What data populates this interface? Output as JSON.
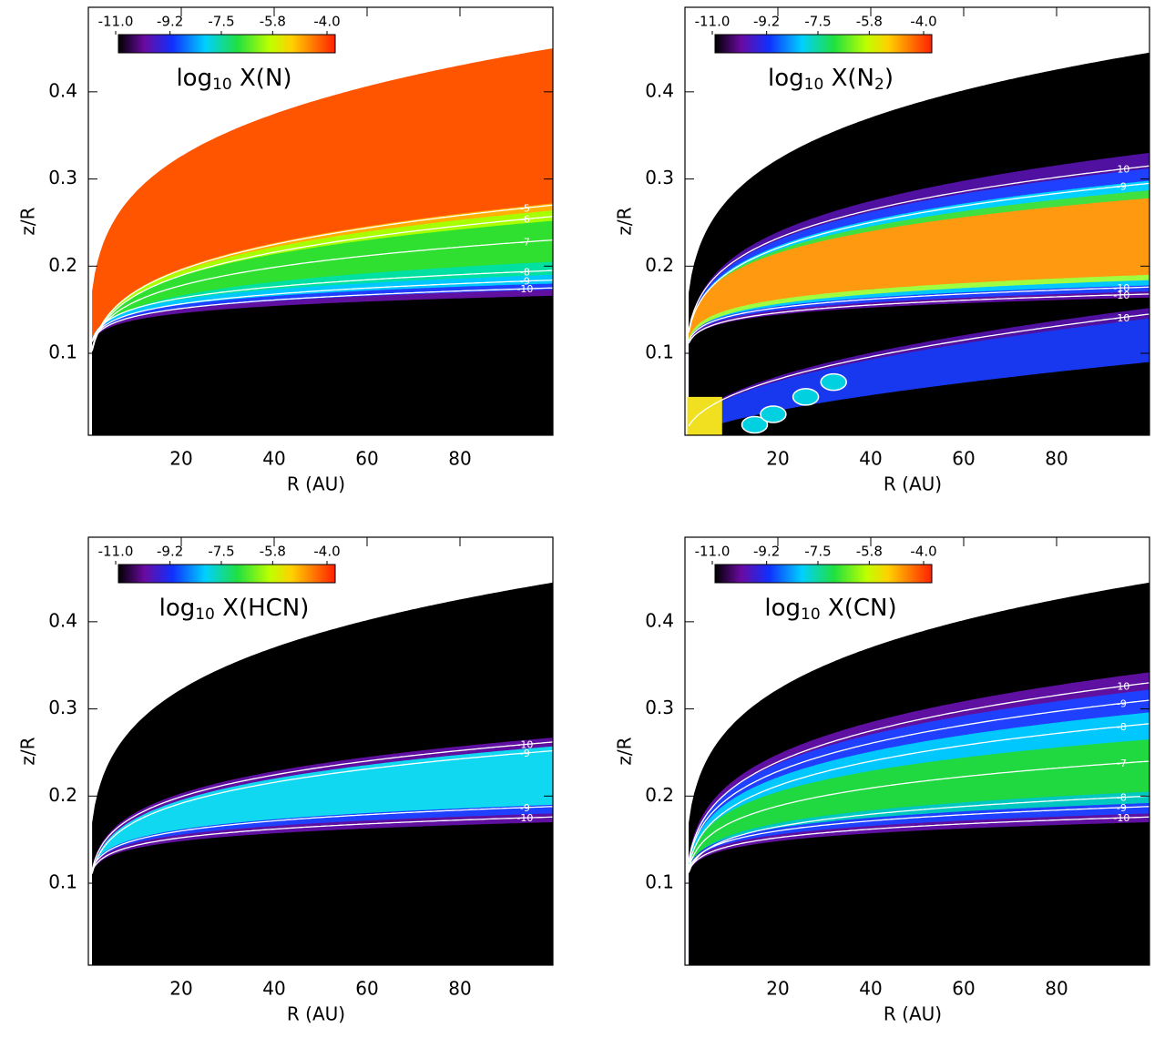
{
  "chart_data": [
    {
      "type": "heatmap",
      "title": [
        {
          "text": "log"
        },
        {
          "text": "10",
          "sub": true
        },
        {
          "text": " X(N)"
        }
      ],
      "xlabel": "R (AU)",
      "ylabel": "z/R",
      "xlim": [
        0,
        100
      ],
      "ylim": [
        0.006,
        0.497
      ],
      "xticks": [
        20,
        40,
        60,
        80
      ],
      "yticks": [
        0.1,
        0.2,
        0.3,
        0.4
      ],
      "colorbar": {
        "clim": [
          -11,
          -4
        ],
        "ticks": [
          {
            "value": -11,
            "label": "-11.0"
          },
          -9.2,
          -7.5,
          -5.8,
          {
            "value": -4,
            "label": "-4.0"
          }
        ]
      },
      "contour_levels": [
        -5,
        -6,
        -7,
        -8,
        -9,
        -10
      ]
    },
    {
      "type": "heatmap",
      "title": [
        {
          "text": "log"
        },
        {
          "text": "10",
          "sub": true
        },
        {
          "text": " X(N"
        },
        {
          "text": "2",
          "sub": true
        },
        {
          "text": ")"
        }
      ],
      "xlabel": "R (AU)",
      "ylabel": "z/R",
      "xlim": [
        0,
        100
      ],
      "ylim": [
        0.006,
        0.497
      ],
      "xticks": [
        20,
        40,
        60,
        80
      ],
      "yticks": [
        0.1,
        0.2,
        0.3,
        0.4
      ],
      "colorbar": {
        "clim": [
          -11,
          -4
        ],
        "ticks": [
          {
            "value": -11,
            "label": "-11.0"
          },
          -9.2,
          -7.5,
          -5.8,
          {
            "value": -4,
            "label": "-4.0"
          }
        ]
      },
      "contour_levels": [
        -10,
        -9,
        -10,
        -10,
        -10
      ]
    },
    {
      "type": "heatmap",
      "title": [
        {
          "text": "log"
        },
        {
          "text": "10",
          "sub": true
        },
        {
          "text": " X(HCN)"
        }
      ],
      "xlabel": "R (AU)",
      "ylabel": "z/R",
      "xlim": [
        0,
        100
      ],
      "ylim": [
        0.006,
        0.497
      ],
      "xticks": [
        20,
        40,
        60,
        80
      ],
      "yticks": [
        0.1,
        0.2,
        0.3,
        0.4
      ],
      "colorbar": {
        "clim": [
          -11,
          -4
        ],
        "ticks": [
          {
            "value": -11,
            "label": "-11.0"
          },
          -9.2,
          -7.5,
          -5.8,
          {
            "value": -4,
            "label": "-4.0"
          }
        ]
      },
      "contour_levels": [
        -10,
        -9,
        -9,
        -10
      ]
    },
    {
      "type": "heatmap",
      "title": [
        {
          "text": "log"
        },
        {
          "text": "10",
          "sub": true
        },
        {
          "text": " X(CN)"
        }
      ],
      "xlabel": "R (AU)",
      "ylabel": "z/R",
      "xlim": [
        0,
        100
      ],
      "ylim": [
        0.006,
        0.497
      ],
      "xticks": [
        20,
        40,
        60,
        80
      ],
      "yticks": [
        0.1,
        0.2,
        0.3,
        0.4
      ],
      "colorbar": {
        "clim": [
          -11,
          -4
        ],
        "ticks": [
          {
            "value": -11,
            "label": "-11.0"
          },
          -9.2,
          -7.5,
          -5.8,
          {
            "value": -4,
            "label": "-4.0"
          }
        ]
      },
      "contour_levels": [
        -10,
        -9,
        -8,
        -7,
        -8,
        -9,
        -10
      ]
    }
  ]
}
